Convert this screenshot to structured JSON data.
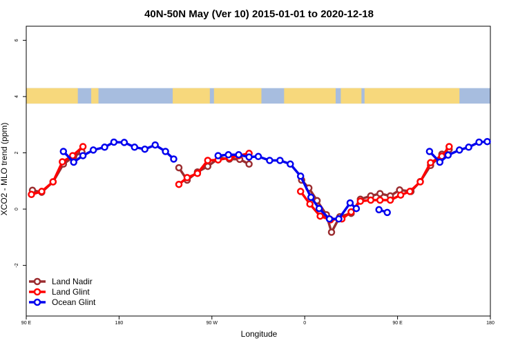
{
  "chart_data": {
    "type": "line",
    "title": "40N-50N May (Ver 10)   2015-01-01 to 2020-12-18",
    "xlabel": "Longitude",
    "ylabel": "XCO2 - MLO trend (ppm)",
    "x_axis": {
      "range": [
        90,
        540
      ],
      "ticks": [
        {
          "value": 90,
          "label": "90 E"
        },
        {
          "value": 180,
          "label": "180"
        },
        {
          "value": 270,
          "label": "90 W"
        },
        {
          "value": 360,
          "label": "0"
        },
        {
          "value": 450,
          "label": "90 E"
        },
        {
          "value": 540,
          "label": "180"
        }
      ]
    },
    "y_axis": {
      "range": [
        -3.8,
        6.5
      ],
      "ticks": [
        {
          "value": -2,
          "label": "-2"
        },
        {
          "value": 0,
          "label": "0"
        },
        {
          "value": 2,
          "label": "2"
        },
        {
          "value": 4,
          "label": "4"
        },
        {
          "value": 6,
          "label": "6"
        }
      ]
    },
    "map_band": {
      "y_min": 3.75,
      "y_max": 4.3,
      "land_color": "#f7d87c",
      "ocean_color": "#a7bddf"
    },
    "grid": false,
    "legend_position": "bottom-left",
    "series": [
      {
        "name": "Land Nadir",
        "color": "#9b2d30",
        "segments": [
          [
            [
              96,
              0.67
            ],
            [
              105,
              0.6
            ],
            [
              116,
              0.97
            ],
            [
              126,
              1.6
            ],
            [
              136,
              1.87
            ],
            [
              144,
              2.03
            ]
          ],
          [
            [
              238,
              1.47
            ],
            [
              246,
              1.03
            ],
            [
              256,
              1.32
            ],
            [
              266,
              1.52
            ],
            [
              277,
              1.82
            ],
            [
              287,
              1.78
            ],
            [
              297,
              1.77
            ],
            [
              306,
              1.6
            ]
          ],
          [
            [
              357,
              1.03
            ],
            [
              364,
              0.75
            ],
            [
              372,
              0.3
            ],
            [
              381,
              -0.2
            ],
            [
              386,
              -0.82
            ],
            [
              394,
              -0.27
            ],
            [
              405,
              -0.15
            ],
            [
              414,
              0.35
            ],
            [
              424,
              0.47
            ],
            [
              433,
              0.55
            ],
            [
              443,
              0.47
            ],
            [
              452,
              0.68
            ],
            [
              463,
              0.63
            ],
            [
              472,
              0.98
            ],
            [
              482,
              1.55
            ],
            [
              493,
              1.95
            ],
            [
              500,
              2.12
            ]
          ]
        ]
      },
      {
        "name": "Land Glint",
        "color": "#ff0000",
        "segments": [
          [
            [
              95,
              0.52
            ],
            [
              105,
              0.63
            ],
            [
              116,
              0.97
            ],
            [
              125,
              1.68
            ],
            [
              135,
              1.9
            ],
            [
              145,
              2.22
            ]
          ],
          [
            [
              238,
              0.88
            ],
            [
              246,
              1.12
            ],
            [
              256,
              1.27
            ],
            [
              266,
              1.73
            ],
            [
              276,
              1.75
            ],
            [
              287,
              1.82
            ],
            [
              296,
              1.9
            ],
            [
              306,
              1.98
            ]
          ],
          [
            [
              356,
              0.63
            ],
            [
              365,
              0.18
            ],
            [
              375,
              -0.25
            ],
            [
              385,
              -0.38
            ],
            [
              396,
              -0.35
            ],
            [
              405,
              -0.1
            ],
            [
              414,
              0.28
            ],
            [
              424,
              0.32
            ],
            [
              433,
              0.32
            ],
            [
              443,
              0.32
            ],
            [
              453,
              0.5
            ],
            [
              462,
              0.63
            ],
            [
              472,
              0.97
            ],
            [
              482,
              1.65
            ],
            [
              493,
              1.88
            ],
            [
              500,
              2.22
            ]
          ]
        ]
      },
      {
        "name": "Ocean Glint",
        "color": "#0000ee",
        "segments": [
          [
            [
              126,
              2.05
            ],
            [
              136,
              1.67
            ],
            [
              145,
              1.9
            ],
            [
              155,
              2.1
            ],
            [
              166,
              2.2
            ],
            [
              175,
              2.38
            ],
            [
              185,
              2.37
            ],
            [
              195,
              2.2
            ],
            [
              205,
              2.13
            ],
            [
              215,
              2.28
            ],
            [
              225,
              2.05
            ],
            [
              233,
              1.78
            ]
          ],
          [
            [
              276,
              1.9
            ],
            [
              286,
              1.93
            ],
            [
              296,
              1.93
            ],
            [
              306,
              1.85
            ],
            [
              315,
              1.87
            ],
            [
              326,
              1.73
            ],
            [
              336,
              1.73
            ],
            [
              346,
              1.6
            ],
            [
              356,
              1.17
            ],
            [
              366,
              0.42
            ],
            [
              374,
              0.02
            ],
            [
              384,
              -0.35
            ],
            [
              393,
              -0.35
            ],
            [
              404,
              0.22
            ],
            [
              410,
              0.02
            ]
          ],
          [
            [
              432,
              -0.02
            ],
            [
              440,
              -0.12
            ]
          ],
          [
            [
              481,
              2.05
            ],
            [
              491,
              1.67
            ],
            [
              499,
              1.92
            ],
            [
              510,
              2.1
            ],
            [
              519,
              2.2
            ],
            [
              529,
              2.38
            ],
            [
              537,
              2.4
            ]
          ]
        ]
      }
    ]
  }
}
